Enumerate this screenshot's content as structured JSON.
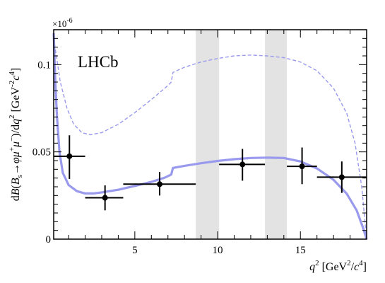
{
  "chart_data": {
    "type": "scatter",
    "experiment_label": "LHCb",
    "exponent_label": "×10",
    "exponent_power": "-6",
    "x_label": {
      "var": "q",
      "sup": "2",
      "unit_open": " [GeV",
      "unit_sup": "2",
      "unit_mid": "/",
      "unit_c": "c",
      "unit_sup2": "4",
      "unit_close": "]"
    },
    "y_label": {
      "prefix": "d",
      "b": "B",
      "paren_open": "(",
      "bs": "B",
      "bs_sub": "s",
      "arrow": "→",
      "phi": "φ",
      "mu1": "μ",
      "mu1_sup": "+",
      "mu2": "μ",
      "mu2_sup": "−",
      "tail": ")/d",
      "q": "q",
      "q_sup": "2",
      "unit_open": " [GeV",
      "unit_sup": "-2",
      "unit_c": "c",
      "unit_sup2": "4",
      "unit_close": "]"
    },
    "xlim": [
      0.1,
      19.0
    ],
    "ylim": [
      0,
      0.12
    ],
    "x_ticks": [
      5,
      10,
      15
    ],
    "x_tick_labels": [
      "5",
      "10",
      "15"
    ],
    "y_ticks": [
      0.05,
      0.1
    ],
    "y_tick_labels": [
      "0.05",
      "0.1"
    ],
    "excluded_bands": [
      [
        8.68,
        10.09
      ],
      [
        12.86,
        14.18
      ]
    ],
    "band_color": "#e3e3e3",
    "curve_color": "#9999ee",
    "points": [
      {
        "x": 1.05,
        "xlo": 0.1,
        "xhi": 2.0,
        "y": 0.0475,
        "ylo": 0.0345,
        "yhi": 0.0595
      },
      {
        "x": 3.2,
        "xlo": 2.0,
        "xhi": 4.3,
        "y": 0.0237,
        "ylo": 0.0165,
        "yhi": 0.0308
      },
      {
        "x": 6.5,
        "xlo": 4.3,
        "xhi": 8.68,
        "y": 0.0315,
        "ylo": 0.025,
        "yhi": 0.0385
      },
      {
        "x": 11.5,
        "xlo": 10.09,
        "xhi": 12.86,
        "y": 0.0428,
        "ylo": 0.0335,
        "yhi": 0.0517
      },
      {
        "x": 15.1,
        "xlo": 14.18,
        "xhi": 16.0,
        "y": 0.0417,
        "ylo": 0.0315,
        "yhi": 0.0525
      },
      {
        "x": 17.5,
        "xlo": 16.0,
        "xhi": 19.0,
        "y": 0.0355,
        "ylo": 0.0265,
        "yhi": 0.0445
      }
    ],
    "prediction_solid": [
      [
        0.1,
        0.118
      ],
      [
        0.2,
        0.09
      ],
      [
        0.3,
        0.07
      ],
      [
        0.45,
        0.05
      ],
      [
        0.65,
        0.038
      ],
      [
        1.0,
        0.031
      ],
      [
        1.5,
        0.0275
      ],
      [
        2.0,
        0.0262
      ],
      [
        2.5,
        0.0262
      ],
      [
        3.0,
        0.0268
      ],
      [
        4.0,
        0.0283
      ],
      [
        5.0,
        0.0305
      ],
      [
        6.0,
        0.0328
      ],
      [
        6.8,
        0.0352
      ],
      [
        7.2,
        0.037
      ],
      [
        7.3,
        0.0408
      ],
      [
        8.0,
        0.042
      ],
      [
        9.0,
        0.0435
      ],
      [
        10.0,
        0.0448
      ],
      [
        11.0,
        0.0458
      ],
      [
        12.0,
        0.0465
      ],
      [
        13.0,
        0.0467
      ],
      [
        14.0,
        0.0465
      ],
      [
        15.0,
        0.0445
      ],
      [
        16.0,
        0.0405
      ],
      [
        17.0,
        0.034
      ],
      [
        17.8,
        0.026
      ],
      [
        18.4,
        0.0165
      ],
      [
        18.8,
        0.006
      ],
      [
        19.0,
        0.0
      ]
    ],
    "prediction_dashed": [
      [
        0.1,
        0.115
      ],
      [
        0.5,
        0.09
      ],
      [
        0.9,
        0.075
      ],
      [
        1.3,
        0.066
      ],
      [
        1.8,
        0.061
      ],
      [
        2.3,
        0.0598
      ],
      [
        3.0,
        0.061
      ],
      [
        4.0,
        0.0658
      ],
      [
        5.0,
        0.0725
      ],
      [
        6.0,
        0.08
      ],
      [
        7.0,
        0.088
      ],
      [
        7.2,
        0.09
      ],
      [
        7.3,
        0.0955
      ],
      [
        8.0,
        0.0985
      ],
      [
        9.0,
        0.1015
      ],
      [
        10.0,
        0.1035
      ],
      [
        11.0,
        0.105
      ],
      [
        12.0,
        0.1055
      ],
      [
        13.0,
        0.105
      ],
      [
        14.0,
        0.104
      ],
      [
        15.0,
        0.1015
      ],
      [
        16.0,
        0.0965
      ],
      [
        17.0,
        0.0865
      ],
      [
        17.8,
        0.072
      ],
      [
        18.3,
        0.055
      ],
      [
        18.7,
        0.03
      ],
      [
        19.0,
        0.0
      ]
    ]
  }
}
